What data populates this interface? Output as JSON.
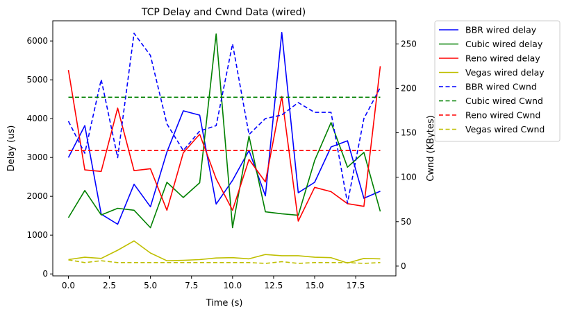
{
  "chart_data": {
    "type": "line",
    "title": "TCP Delay and Cwnd Data (wired)",
    "xlabel": "Time (s)",
    "ylabel": "Delay (us)",
    "y2label": "Cwnd (KBytes)",
    "xlim": [
      -0.95,
      19.95
    ],
    "ylim": [
      -50,
      6520
    ],
    "y2lim": [
      -11,
      276
    ],
    "x_ticks": [
      0,
      2.5,
      5,
      7.5,
      10,
      12.5,
      15,
      17.5
    ],
    "x_tick_labels": [
      "0.0",
      "2.5",
      "5.0",
      "7.5",
      "10.0",
      "12.5",
      "15.0",
      "17.5"
    ],
    "y_ticks": [
      0,
      1000,
      2000,
      3000,
      4000,
      5000,
      6000
    ],
    "y_tick_labels": [
      "0",
      "1000",
      "2000",
      "3000",
      "4000",
      "5000",
      "6000"
    ],
    "y2_ticks": [
      0,
      50,
      100,
      150,
      200,
      250
    ],
    "y2_tick_labels": [
      "0",
      "50",
      "100",
      "150",
      "200",
      "250"
    ],
    "grid": false,
    "legend_position": "outside-top-right",
    "x": [
      0,
      1,
      2,
      3,
      4,
      5,
      6,
      7,
      8,
      9,
      10,
      11,
      12,
      13,
      14,
      15,
      16,
      17,
      18,
      19
    ],
    "series": [
      {
        "name": "BBR wired delay",
        "axis": "left",
        "color": "#0000ff",
        "style": "solid",
        "values": [
          3000,
          3820,
          1540,
          1280,
          2310,
          1730,
          3140,
          4200,
          4090,
          1800,
          2410,
          3180,
          2010,
          6220,
          2090,
          2360,
          3270,
          3430,
          1950,
          2130
        ]
      },
      {
        "name": "Cubic wired delay",
        "axis": "left",
        "color": "#008000",
        "style": "solid",
        "values": [
          1450,
          2150,
          1520,
          1690,
          1640,
          1190,
          2360,
          1970,
          2350,
          6180,
          1190,
          3550,
          1600,
          1550,
          1510,
          2920,
          3900,
          2750,
          3130,
          1610
        ]
      },
      {
        "name": "Reno wired delay",
        "axis": "left",
        "color": "#ff0000",
        "style": "solid",
        "values": [
          5250,
          2680,
          2640,
          4270,
          2660,
          2710,
          1640,
          3120,
          3600,
          2450,
          1640,
          2950,
          2370,
          4570,
          1360,
          2230,
          2120,
          1810,
          1740,
          5350
        ]
      },
      {
        "name": "Vegas wired delay",
        "axis": "left",
        "color": "#bfbf00",
        "style": "solid",
        "values": [
          370,
          430,
          400,
          610,
          850,
          540,
          340,
          350,
          370,
          410,
          420,
          390,
          500,
          470,
          470,
          430,
          420,
          280,
          400,
          390
        ]
      },
      {
        "name": "BBR wired Cwnd",
        "axis": "right",
        "color": "#0000ff",
        "style": "dashed",
        "values": [
          163,
          127,
          210,
          122,
          262,
          237,
          160,
          130,
          152,
          158,
          250,
          148,
          166,
          170,
          184,
          173,
          173,
          71,
          166,
          201
        ]
      },
      {
        "name": "Cubic wired Cwnd",
        "axis": "right",
        "color": "#008000",
        "style": "dashed",
        "values": [
          190,
          190,
          190,
          190,
          190,
          190,
          190,
          190,
          190,
          190,
          190,
          190,
          190,
          190,
          190,
          190,
          190,
          190,
          190,
          190
        ]
      },
      {
        "name": "Reno wired Cwnd",
        "axis": "right",
        "color": "#ff0000",
        "style": "dashed",
        "values": [
          130,
          130,
          130,
          130,
          130,
          130,
          130,
          130,
          130,
          130,
          130,
          130,
          130,
          130,
          130,
          130,
          130,
          130,
          130,
          130
        ]
      },
      {
        "name": "Vegas wired Cwnd",
        "axis": "right",
        "color": "#bfbf00",
        "style": "dashed",
        "values": [
          7,
          4,
          6,
          4,
          4,
          4,
          4,
          4,
          4,
          4,
          4,
          4,
          3,
          5,
          3,
          4,
          4,
          4,
          3,
          4
        ]
      }
    ]
  }
}
